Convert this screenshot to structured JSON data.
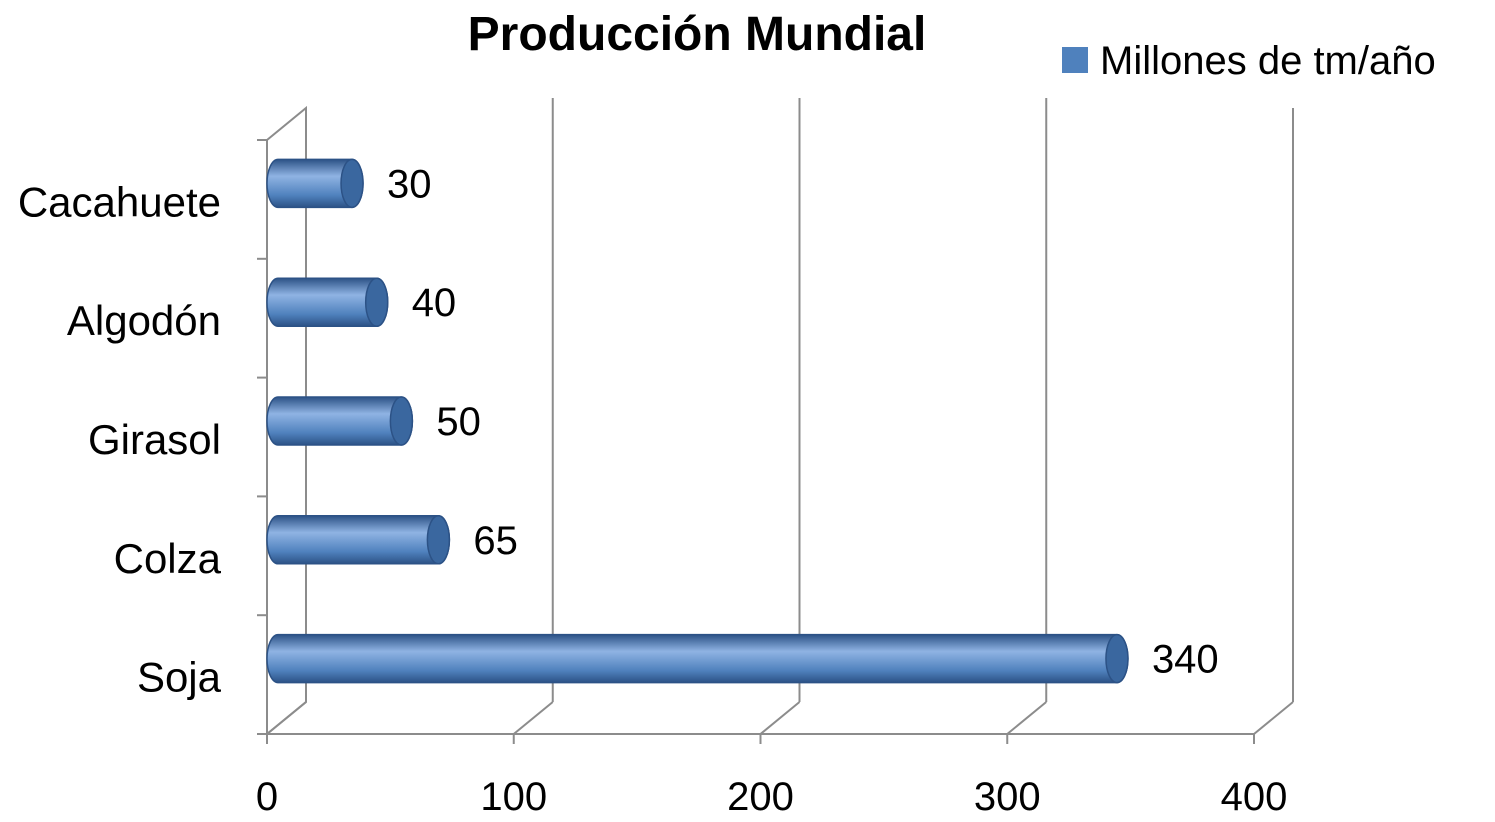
{
  "chart_data": {
    "type": "bar",
    "orientation": "horizontal",
    "style": "3d-cylinder",
    "title": "Producción Mundial",
    "categories": [
      "Cacahuete",
      "Algodón",
      "Girasol",
      "Colza",
      "Soja"
    ],
    "series": [
      {
        "name": "Millones de tm/año",
        "values": [
          30,
          40,
          50,
          65,
          340
        ],
        "data_labels": [
          "30",
          "40",
          "50",
          "65",
          "340"
        ]
      }
    ],
    "xlim": [
      0,
      400
    ],
    "x_ticks": [
      0,
      100,
      200,
      300,
      400
    ],
    "x_tick_labels": [
      "0",
      "100",
      "200",
      "300",
      "400"
    ],
    "xlabel": "",
    "ylabel": "",
    "grid": true,
    "legend_position": "top-right",
    "colors": {
      "bar": "#4f81bd",
      "bar_highlight": "#8fb3e3",
      "bar_shadow": "#2c5286",
      "bar_cap": "#3a679f",
      "grid": "#8c8c8c",
      "legend_swatch": "#4f81bd"
    }
  }
}
